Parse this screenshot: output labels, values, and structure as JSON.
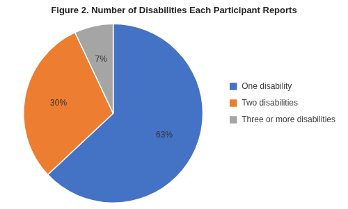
{
  "chart_data": {
    "type": "pie",
    "title": "Figure 2. Number of Disabilities Each Participant Reports",
    "categories": [
      "One disability",
      "Two disabilities",
      "Three or more disabilities"
    ],
    "values": [
      63,
      30,
      7
    ],
    "value_labels": [
      "63%",
      "30%",
      "7%"
    ],
    "colors": [
      "#4472C4",
      "#ED7D31",
      "#A5A5A5"
    ],
    "data_labels": true,
    "legend": "right"
  }
}
